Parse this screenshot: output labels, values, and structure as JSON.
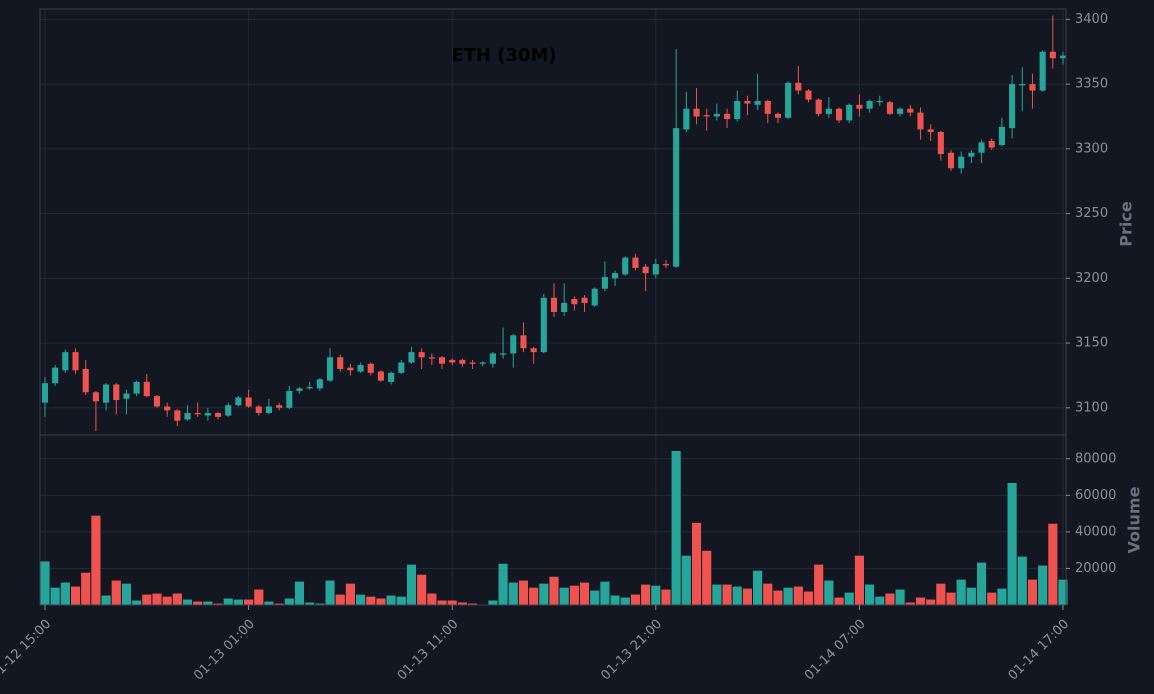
{
  "chart_data": {
    "type": "candlestick",
    "title": "ETH (30M)",
    "y_label": "Price",
    "y2_label": "Volume",
    "up_color": "#26a69a",
    "down_color": "#ef5350",
    "x": [
      "01-12 15:00",
      "01-12 15:30",
      "01-12 16:00",
      "01-12 16:30",
      "01-12 17:00",
      "01-12 17:30",
      "01-12 18:00",
      "01-12 18:30",
      "01-12 19:00",
      "01-12 19:30",
      "01-12 20:00",
      "01-12 20:30",
      "01-12 21:00",
      "01-12 21:30",
      "01-12 22:00",
      "01-12 22:30",
      "01-12 23:00",
      "01-12 23:30",
      "01-13 00:00",
      "01-13 00:30",
      "01-13 01:00",
      "01-13 01:30",
      "01-13 02:00",
      "01-13 02:30",
      "01-13 03:00",
      "01-13 03:30",
      "01-13 04:00",
      "01-13 04:30",
      "01-13 05:00",
      "01-13 05:30",
      "01-13 06:00",
      "01-13 06:30",
      "01-13 07:00",
      "01-13 07:30",
      "01-13 08:00",
      "01-13 08:30",
      "01-13 09:00",
      "01-13 09:30",
      "01-13 10:00",
      "01-13 10:30",
      "01-13 11:00",
      "01-13 11:30",
      "01-13 12:00",
      "01-13 12:30",
      "01-13 13:00",
      "01-13 13:30",
      "01-13 14:00",
      "01-13 14:30",
      "01-13 15:00",
      "01-13 15:30",
      "01-13 16:00",
      "01-13 16:30",
      "01-13 17:00",
      "01-13 17:30",
      "01-13 18:00",
      "01-13 18:30",
      "01-13 19:00",
      "01-13 19:30",
      "01-13 20:00",
      "01-13 20:30",
      "01-13 21:00",
      "01-13 21:30",
      "01-13 22:00",
      "01-13 22:30",
      "01-13 23:00",
      "01-13 23:30",
      "01-14 00:00",
      "01-14 00:30",
      "01-14 01:00",
      "01-14 01:30",
      "01-14 02:00",
      "01-14 02:30",
      "01-14 03:00",
      "01-14 03:30",
      "01-14 04:00",
      "01-14 04:30",
      "01-14 05:00",
      "01-14 05:30",
      "01-14 06:00",
      "01-14 06:30",
      "01-14 07:00",
      "01-14 07:30",
      "01-14 08:00",
      "01-14 08:30",
      "01-14 09:00",
      "01-14 09:30",
      "01-14 10:00",
      "01-14 10:30",
      "01-14 11:00",
      "01-14 11:30",
      "01-14 12:00",
      "01-14 12:30",
      "01-14 13:00",
      "01-14 13:30",
      "01-14 14:00",
      "01-14 14:30",
      "01-14 15:00",
      "01-14 15:30",
      "01-14 16:00",
      "01-14 16:30",
      "01-14 17:00"
    ],
    "xticks": [
      "01-12 15:00",
      "01-13 01:00",
      "01-13 11:00",
      "01-13 21:00",
      "01-14 07:00",
      "01-14 17:00"
    ],
    "open": [
      3104,
      3119,
      3129,
      3143,
      3130,
      3112,
      3104,
      3118,
      3107,
      3111,
      3120,
      3109,
      3101,
      3098,
      3091,
      3096,
      3094,
      3096,
      3094,
      3102,
      3108,
      3101,
      3096,
      3102,
      3100,
      3113,
      3115,
      3115,
      3121,
      3139,
      3131,
      3128,
      3134,
      3128,
      3120,
      3127,
      3135,
      3143,
      3139,
      3139,
      3137,
      3137,
      3135,
      3134,
      3134,
      3141,
      3142,
      3156,
      3146,
      3143,
      3185,
      3174,
      3184,
      3185,
      3179,
      3192,
      3200,
      3203,
      3216,
      3209,
      3203,
      3211,
      3209,
      3315,
      3331,
      3326,
      3325,
      3327,
      3323,
      3337,
      3334,
      3337,
      3327,
      3324,
      3351,
      3345,
      3338,
      3327,
      3331,
      3322,
      3334,
      3331,
      3336,
      3336,
      3327,
      3331,
      3328,
      3315,
      3313,
      3297,
      3285,
      3294,
      3297,
      3306,
      3303,
      3316,
      3349,
      3350,
      3345,
      3375,
      3370
    ],
    "high": [
      3124,
      3133,
      3145,
      3146,
      3137,
      3113,
      3119,
      3119,
      3114,
      3121,
      3126,
      3110,
      3104,
      3099,
      3102,
      3104,
      3100,
      3097,
      3104,
      3109,
      3114,
      3102,
      3107,
      3104,
      3117,
      3116,
      3120,
      3123,
      3146,
      3141,
      3134,
      3135,
      3135,
      3129,
      3128,
      3137,
      3147,
      3146,
      3142,
      3140,
      3138,
      3138,
      3137,
      3136,
      3143,
      3162,
      3157,
      3166,
      3147,
      3188,
      3196,
      3196,
      3186,
      3187,
      3193,
      3213,
      3206,
      3217,
      3219,
      3211,
      3215,
      3214,
      3377,
      3344,
      3347,
      3331,
      3335,
      3331,
      3345,
      3341,
      3358,
      3338,
      3328,
      3352,
      3364,
      3346,
      3339,
      3340,
      3332,
      3335,
      3342,
      3338,
      3341,
      3337,
      3332,
      3334,
      3332,
      3319,
      3314,
      3299,
      3298,
      3299,
      3307,
      3308,
      3324,
      3357,
      3363,
      3358,
      3376,
      3403,
      3375
    ],
    "low": [
      3093,
      3117,
      3127,
      3126,
      3110,
      3082,
      3098,
      3095,
      3095,
      3109,
      3108,
      3100,
      3093,
      3086,
      3090,
      3093,
      3090,
      3091,
      3093,
      3101,
      3100,
      3094,
      3095,
      3098,
      3099,
      3111,
      3114,
      3113,
      3120,
      3128,
      3125,
      3127,
      3125,
      3120,
      3118,
      3126,
      3134,
      3130,
      3133,
      3130,
      3133,
      3132,
      3130,
      3132,
      3131,
      3138,
      3131,
      3143,
      3134,
      3142,
      3170,
      3171,
      3175,
      3174,
      3178,
      3190,
      3194,
      3202,
      3206,
      3190,
      3200,
      3208,
      3208,
      3313,
      3319,
      3314,
      3322,
      3316,
      3321,
      3326,
      3330,
      3320,
      3320,
      3323,
      3342,
      3336,
      3325,
      3324,
      3320,
      3320,
      3325,
      3328,
      3333,
      3326,
      3325,
      3325,
      3307,
      3306,
      3291,
      3283,
      3281,
      3289,
      3289,
      3299,
      3302,
      3308,
      3329,
      3331,
      3344,
      3362,
      3365
    ],
    "close": [
      3119,
      3131,
      3143,
      3129,
      3112,
      3105,
      3118,
      3106,
      3111,
      3120,
      3109,
      3101,
      3098,
      3090,
      3096,
      3095,
      3096,
      3093,
      3102,
      3108,
      3101,
      3096,
      3101,
      3100,
      3113,
      3115,
      3116,
      3122,
      3139,
      3130,
      3129,
      3133,
      3127,
      3121,
      3127,
      3135,
      3143,
      3139,
      3138,
      3134,
      3135,
      3134,
      3134,
      3135,
      3142,
      3142,
      3156,
      3146,
      3143,
      3185,
      3174,
      3181,
      3180,
      3181,
      3192,
      3201,
      3204,
      3216,
      3208,
      3204,
      3211,
      3210,
      3316,
      3331,
      3325,
      3325,
      3327,
      3323,
      3337,
      3335,
      3337,
      3327,
      3324,
      3351,
      3345,
      3338,
      3327,
      3331,
      3322,
      3334,
      3331,
      3337,
      3337,
      3327,
      3331,
      3328,
      3315,
      3313,
      3296,
      3285,
      3294,
      3297,
      3305,
      3301,
      3317,
      3350,
      3350,
      3345,
      3375,
      3370,
      3372
    ],
    "volume": [
      24000,
      9600,
      12400,
      10200,
      17800,
      49000,
      5300,
      13500,
      11800,
      2600,
      5800,
      6400,
      4700,
      6400,
      3100,
      2000,
      2000,
      900,
      3700,
      3100,
      3100,
      8600,
      2000,
      900,
      3700,
      12900,
      1500,
      900,
      13500,
      5800,
      11800,
      5800,
      4700,
      3700,
      5300,
      4700,
      22200,
      16700,
      6400,
      2600,
      2600,
      1500,
      900,
      400,
      2600,
      22700,
      12400,
      13500,
      9600,
      11800,
      15600,
      9600,
      10700,
      12400,
      8000,
      12900,
      5300,
      4200,
      5800,
      11300,
      10700,
      8600,
      84400,
      27100,
      45100,
      29800,
      11300,
      11300,
      10200,
      9100,
      18900,
      11800,
      8000,
      9600,
      10200,
      7500,
      22200,
      13500,
      4200,
      6900,
      27100,
      11300,
      4700,
      6400,
      8600,
      1500,
      4200,
      3100,
      11800,
      6900,
      14000,
      9600,
      23300,
      6900,
      9100,
      66900,
      26600,
      14000,
      21700,
      44600,
      14000
    ],
    "ylim": [
      3079,
      3408
    ],
    "yticks": [
      3100,
      3150,
      3200,
      3250,
      3300,
      3350,
      3400
    ],
    "y2lim": [
      0,
      93000
    ],
    "y2ticks": [
      20000,
      40000,
      60000,
      80000
    ],
    "grid": true
  }
}
